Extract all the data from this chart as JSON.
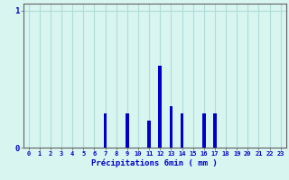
{
  "hours": [
    0,
    1,
    2,
    3,
    4,
    5,
    6,
    7,
    8,
    9,
    10,
    11,
    12,
    13,
    14,
    15,
    16,
    17,
    18,
    19,
    20,
    21,
    22,
    23
  ],
  "values": [
    0,
    0,
    0,
    0,
    0,
    0,
    0,
    0.25,
    0,
    0.25,
    0,
    0.2,
    0.6,
    0.3,
    0.25,
    0,
    0.25,
    0.25,
    0,
    0,
    0,
    0,
    0,
    0
  ],
  "bar_color": "#0000cc",
  "background_color": "#d8f5f0",
  "grid_color": "#b0ddd8",
  "axis_color": "#606060",
  "text_color": "#0000cc",
  "xlabel": "Précipitations 6min ( mm )",
  "ylim": [
    0,
    1.05
  ],
  "yticks": [
    0,
    1
  ],
  "xlim": [
    -0.5,
    23.5
  ],
  "fig_width": 3.2,
  "fig_height": 2.0,
  "dpi": 100
}
